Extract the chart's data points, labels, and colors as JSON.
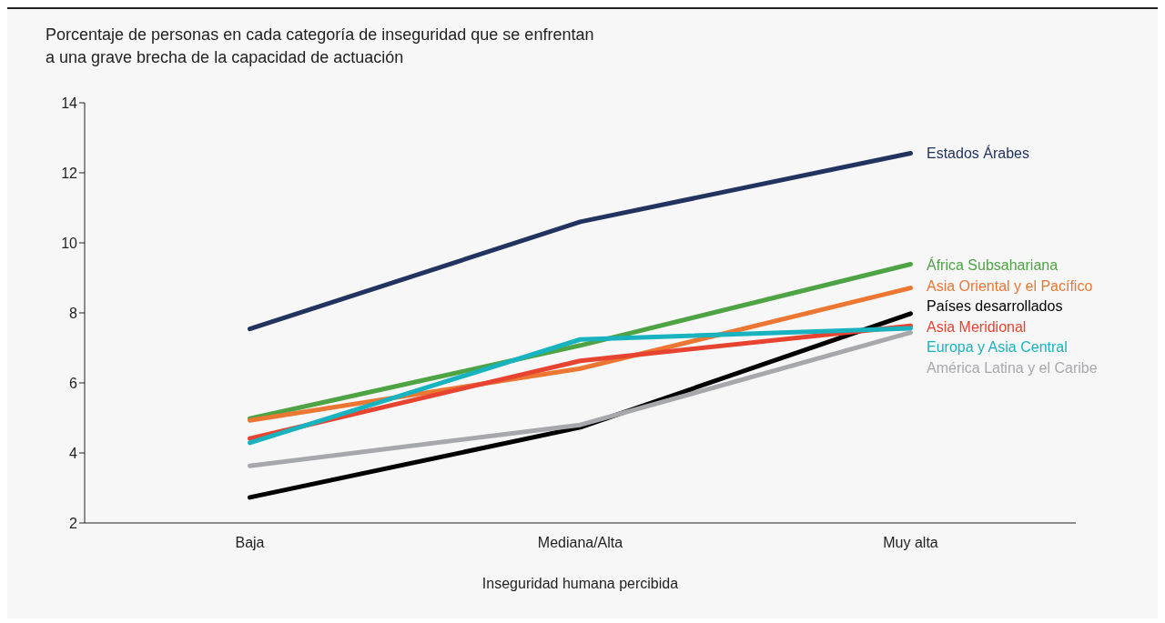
{
  "chart_data": {
    "type": "line",
    "title": "Porcentaje de personas en cada categoría de inseguridad que se enfrentan a una grave brecha de la capacidad de actuación",
    "xlabel": "Inseguridad humana percibida",
    "categories": [
      "Baja",
      "Mediana/Alta",
      "Muy alta"
    ],
    "series": [
      {
        "name": "Estados Árabes",
        "color": "#22335f",
        "values": [
          7.54,
          10.6,
          12.56
        ]
      },
      {
        "name": "África Subsahariana",
        "color": "#4ea345",
        "values": [
          4.98,
          7.07,
          9.39
        ]
      },
      {
        "name": "Asia Oriental y el Pacífico",
        "color": "#ec7733",
        "values": [
          4.93,
          6.41,
          8.71
        ]
      },
      {
        "name": "Países desarrollados",
        "color": "#000000",
        "values": [
          2.73,
          4.73,
          7.98
        ]
      },
      {
        "name": "Asia Meridional",
        "color": "#e64431",
        "values": [
          4.41,
          6.63,
          7.63
        ]
      },
      {
        "name": "Europa y Asia Central",
        "color": "#19b3c0",
        "values": [
          4.29,
          7.24,
          7.56
        ]
      },
      {
        "name": "América Latina y el Caribe",
        "color": "#a7a8ac",
        "values": [
          3.63,
          4.8,
          7.44
        ]
      }
    ],
    "ylim": [
      2,
      14
    ],
    "yticks": [
      2,
      4,
      6,
      8,
      10,
      12,
      14
    ],
    "grid": false,
    "legend": "right",
    "marker": "none",
    "line_style": "solid"
  }
}
